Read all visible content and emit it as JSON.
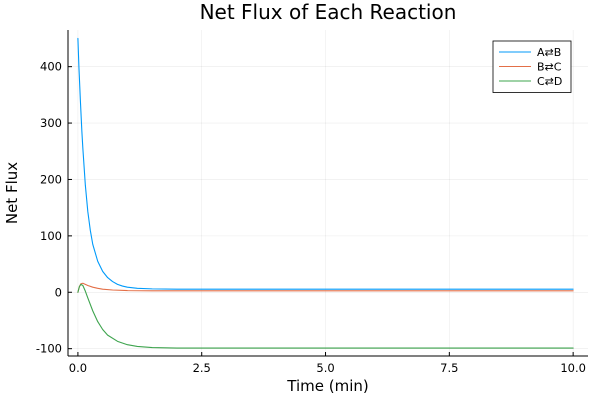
{
  "chart_data": {
    "type": "line",
    "title": "Net Flux of Each Reaction",
    "xlabel": "Time (min)",
    "ylabel": "Net Flux",
    "xlim": [
      -0.2,
      10.3
    ],
    "ylim": [
      -113,
      465
    ],
    "xticks": [
      0,
      2.5,
      5,
      7.5,
      10
    ],
    "xtick_labels": [
      "0.0",
      "2.5",
      "5.0",
      "7.5",
      "10.0"
    ],
    "yticks": [
      -100,
      0,
      100,
      200,
      300,
      400
    ],
    "ytick_labels": [
      "-100",
      "0",
      "100",
      "200",
      "300",
      "400"
    ],
    "grid": true,
    "legend_position": "top-right",
    "series": [
      {
        "name": "A⇄B",
        "color": "#009AFA",
        "x": [
          0,
          0.02,
          0.05,
          0.08,
          0.1,
          0.15,
          0.2,
          0.25,
          0.3,
          0.4,
          0.5,
          0.6,
          0.7,
          0.8,
          0.9,
          1.0,
          1.2,
          1.5,
          2.0,
          3.0,
          5.0,
          7.5,
          10.0
        ],
        "y": [
          450,
          400,
          340,
          285,
          255,
          190,
          143,
          110,
          85,
          55,
          37,
          26,
          19,
          14,
          11,
          9,
          7,
          6,
          5.5,
          5.5,
          5.5,
          5.5,
          5.5
        ]
      },
      {
        "name": "B⇄C",
        "color": "#E36F47",
        "x": [
          0,
          0.03,
          0.06,
          0.1,
          0.15,
          0.2,
          0.3,
          0.4,
          0.5,
          0.7,
          1.0,
          1.5,
          2.0,
          3.0,
          5.0,
          7.5,
          10.0
        ],
        "y": [
          0,
          10,
          15,
          16,
          14,
          12,
          9,
          7,
          5.5,
          4,
          3,
          2.5,
          2.5,
          2.5,
          2.5,
          2.5,
          2.5
        ]
      },
      {
        "name": "C⇄D",
        "color": "#3EA44E",
        "x": [
          0,
          0.03,
          0.06,
          0.1,
          0.15,
          0.2,
          0.3,
          0.4,
          0.5,
          0.6,
          0.8,
          1.0,
          1.2,
          1.5,
          2.0,
          3.0,
          5.0,
          7.5,
          10.0
        ],
        "y": [
          0,
          10,
          14,
          12,
          2,
          -10,
          -33,
          -52,
          -66,
          -76,
          -87,
          -93,
          -96,
          -98,
          -99,
          -99,
          -99,
          -99,
          -99
        ]
      }
    ]
  }
}
